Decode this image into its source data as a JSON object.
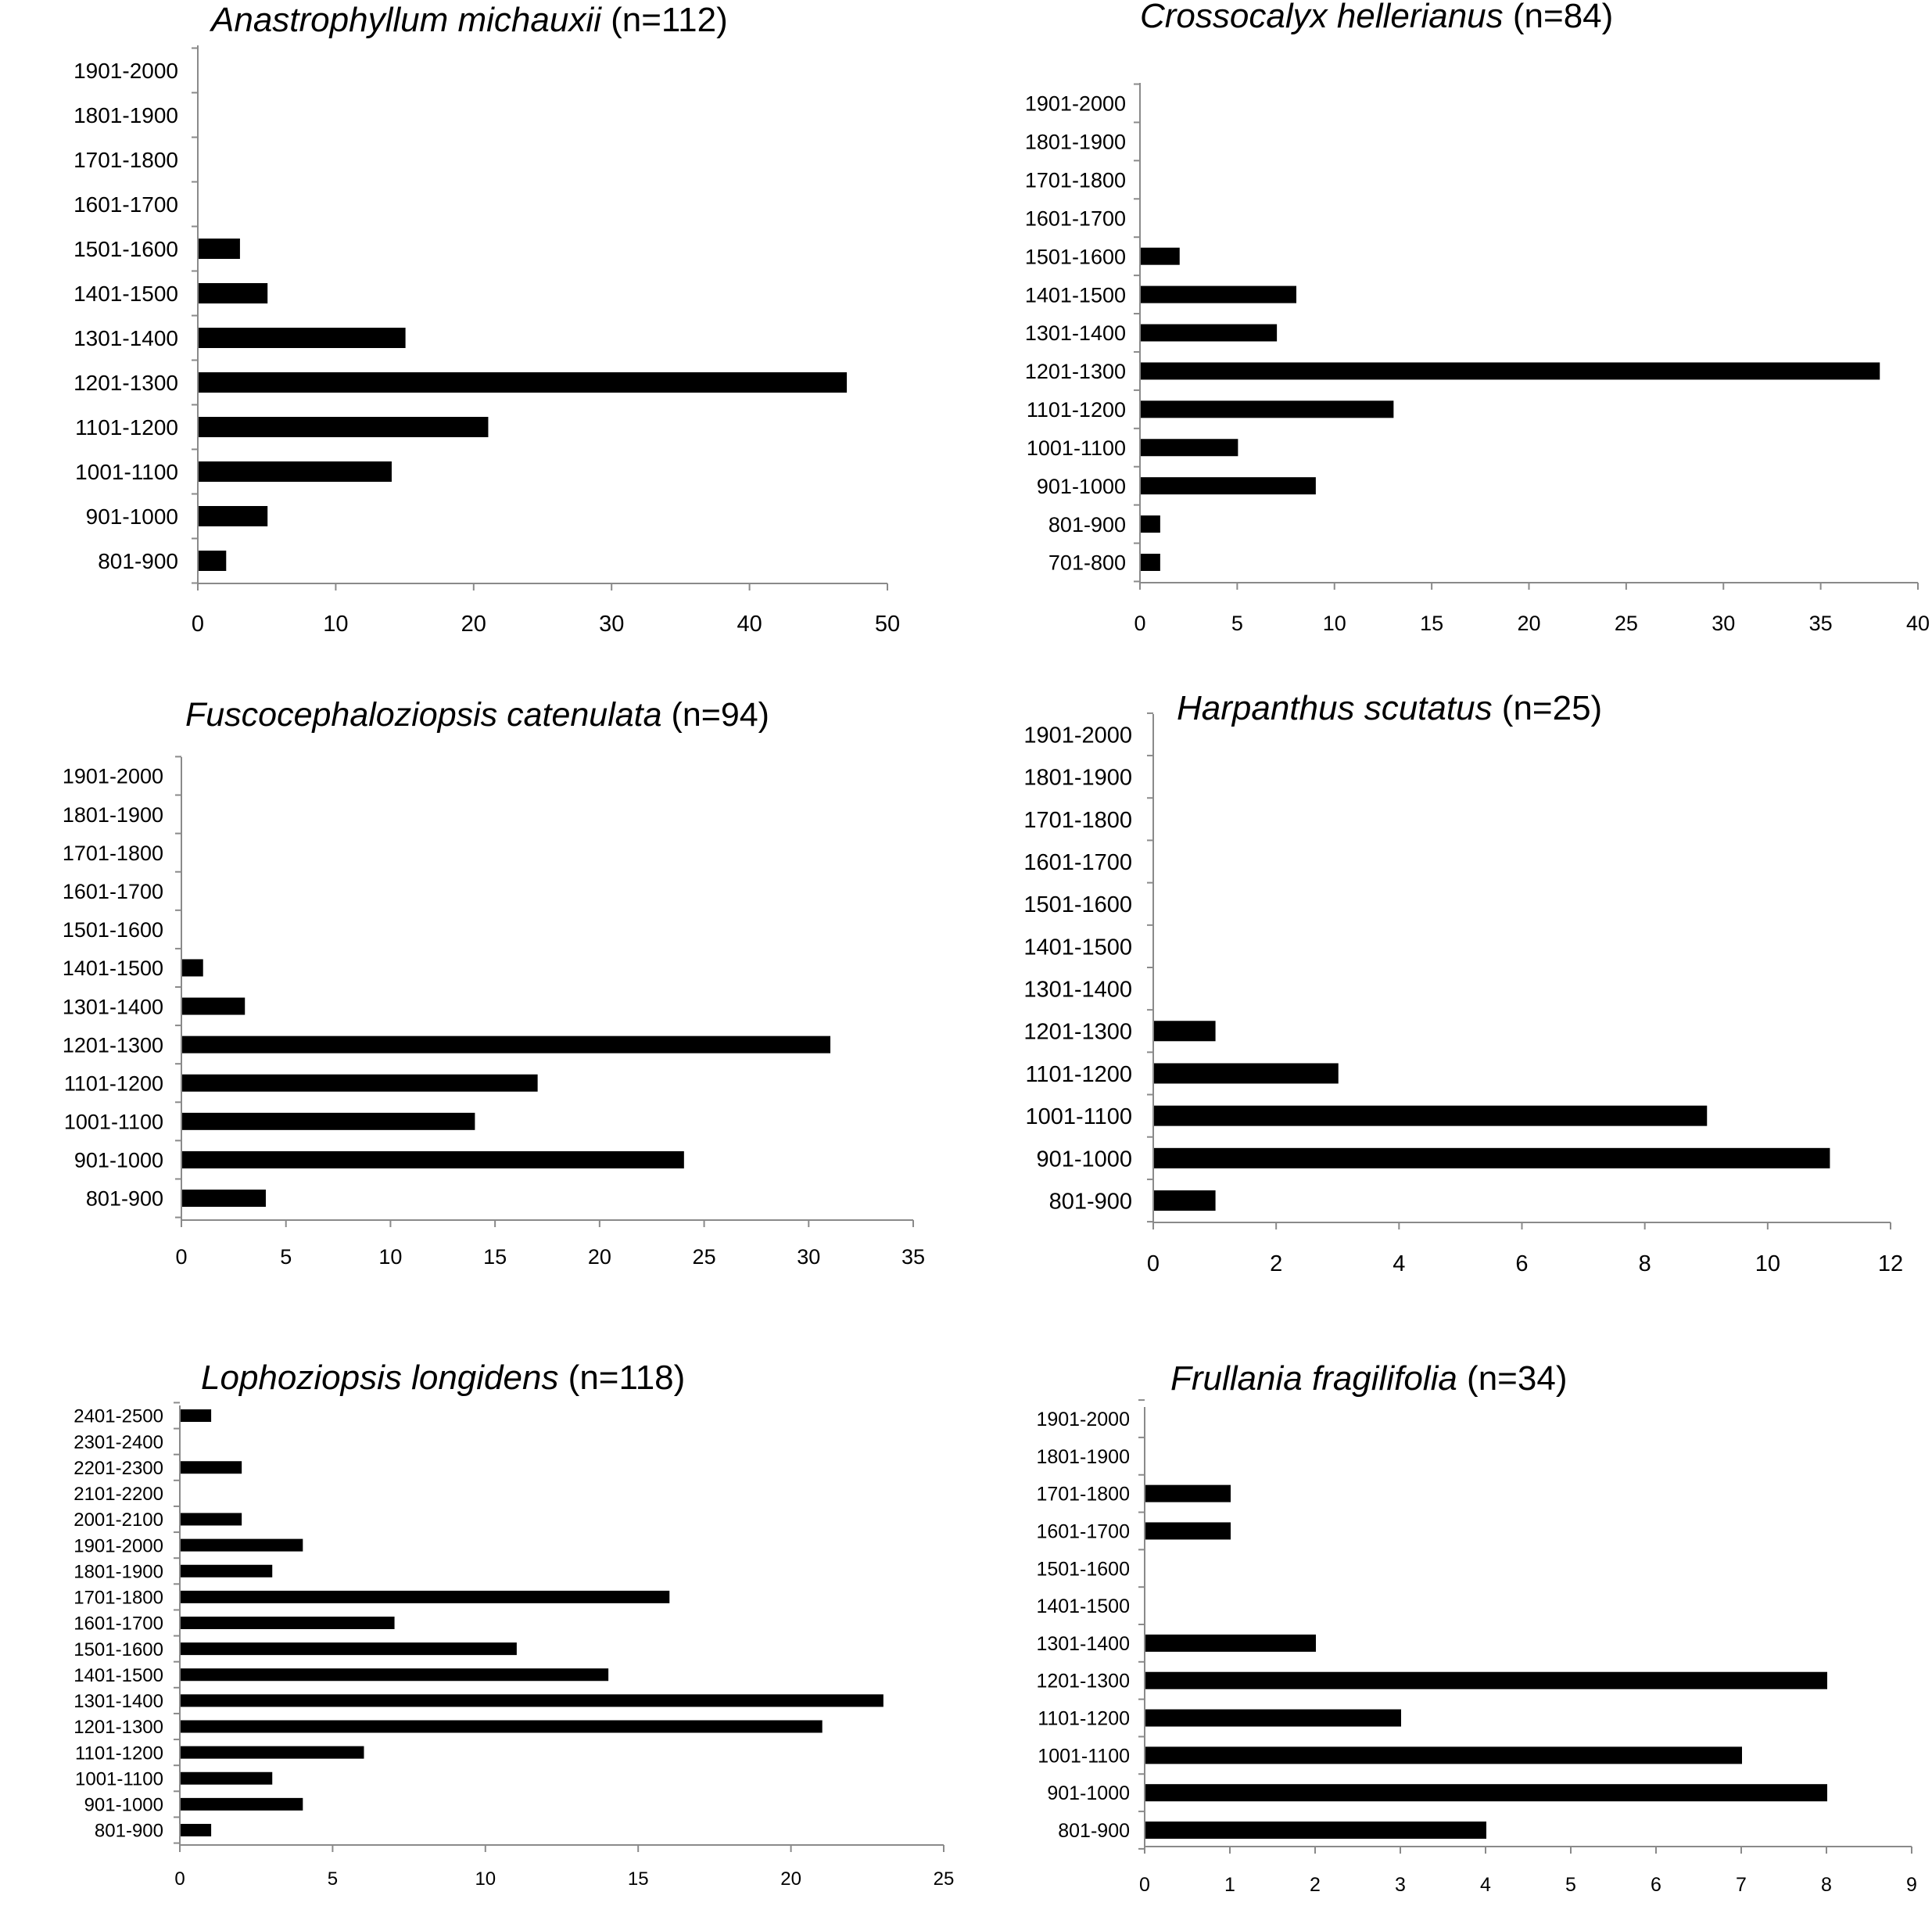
{
  "chart_data": [
    {
      "type": "bar",
      "orientation": "horizontal",
      "title_species": "Anastrophyllum michauxii",
      "title_count": " (n=112)",
      "categories": [
        "801-900",
        "901-1000",
        "1001-1100",
        "1101-1200",
        "1201-1300",
        "1301-1400",
        "1401-1500",
        "1501-1600",
        "1601-1700",
        "1701-1800",
        "1801-1900",
        "1901-2000"
      ],
      "values": [
        2,
        5,
        14,
        21,
        47,
        15,
        5,
        3,
        0,
        0,
        0,
        0
      ],
      "xlim": [
        0,
        50
      ],
      "xticks": [
        "0",
        "10",
        "20",
        "30",
        "40",
        "50"
      ],
      "grid": false
    },
    {
      "type": "bar",
      "orientation": "horizontal",
      "title_species": "Crossocalyx hellerianus",
      "title_count": " (n=84)",
      "categories": [
        "701-800",
        "801-900",
        "901-1000",
        "1001-1100",
        "1101-1200",
        "1201-1300",
        "1301-1400",
        "1401-1500",
        "1501-1600",
        "1601-1700",
        "1701-1800",
        "1801-1900",
        "1901-2000"
      ],
      "values": [
        1,
        1,
        9,
        5,
        13,
        38,
        7,
        8,
        2,
        0,
        0,
        0,
        0
      ],
      "xlim": [
        0,
        40
      ],
      "xticks": [
        "0",
        "5",
        "10",
        "15",
        "20",
        "25",
        "30",
        "35",
        "40"
      ],
      "grid": false
    },
    {
      "type": "bar",
      "orientation": "horizontal",
      "title_species": "Fuscocephaloziopsis catenulata",
      "title_count": " (n=94)",
      "categories": [
        "801-900",
        "901-1000",
        "1001-1100",
        "1101-1200",
        "1201-1300",
        "1301-1400",
        "1401-1500",
        "1501-1600",
        "1601-1700",
        "1701-1800",
        "1801-1900",
        "1901-2000"
      ],
      "values": [
        4,
        24,
        14,
        17,
        31,
        3,
        1,
        0,
        0,
        0,
        0,
        0
      ],
      "xlim": [
        0,
        35
      ],
      "xticks": [
        "0",
        "5",
        "10",
        "15",
        "20",
        "25",
        "30",
        "35"
      ],
      "grid": false
    },
    {
      "type": "bar",
      "orientation": "horizontal",
      "title_species": "Harpanthus scutatus",
      "title_count": " (n=25)",
      "categories": [
        "801-900",
        "901-1000",
        "1001-1100",
        "1101-1200",
        "1201-1300",
        "1301-1400",
        "1401-1500",
        "1501-1600",
        "1601-1700",
        "1701-1800",
        "1801-1900",
        "1901-2000"
      ],
      "values": [
        1,
        11,
        9,
        3,
        1,
        0,
        0,
        0,
        0,
        0,
        0,
        0
      ],
      "xlim": [
        0,
        12
      ],
      "xticks": [
        "0",
        "2",
        "4",
        "6",
        "8",
        "10",
        "12"
      ],
      "grid": false
    },
    {
      "type": "bar",
      "orientation": "horizontal",
      "title_species": "Lophoziopsis longidens",
      "title_count": " (n=118)",
      "categories": [
        "801-900",
        "901-1000",
        "1001-1100",
        "1101-1200",
        "1201-1300",
        "1301-1400",
        "1401-1500",
        "1501-1600",
        "1601-1700",
        "1701-1800",
        "1801-1900",
        "1901-2000",
        "2001-2100",
        "2101-2200",
        "2201-2300",
        "2301-2400",
        "2401-2500"
      ],
      "values": [
        1,
        4,
        3,
        6,
        21,
        23,
        14,
        11,
        7,
        16,
        3,
        4,
        2,
        0,
        2,
        0,
        1
      ],
      "xlim": [
        0,
        25
      ],
      "xticks": [
        "0",
        "5",
        "10",
        "15",
        "20",
        "25"
      ],
      "grid": false
    },
    {
      "type": "bar",
      "orientation": "horizontal",
      "title_species": "Frullania fragilifolia",
      "title_count": " (n=34)",
      "categories": [
        "801-900",
        "901-1000",
        "1001-1100",
        "1101-1200",
        "1201-1300",
        "1301-1400",
        "1401-1500",
        "1501-1600",
        "1601-1700",
        "1701-1800",
        "1801-1900",
        "1901-2000"
      ],
      "values": [
        4,
        8,
        7,
        3,
        8,
        2,
        0,
        0,
        1,
        1,
        0,
        0
      ],
      "xlim": [
        0,
        9
      ],
      "xticks": [
        "0",
        "1",
        "2",
        "3",
        "4",
        "5",
        "6",
        "7",
        "8",
        "9"
      ],
      "grid": false
    }
  ]
}
